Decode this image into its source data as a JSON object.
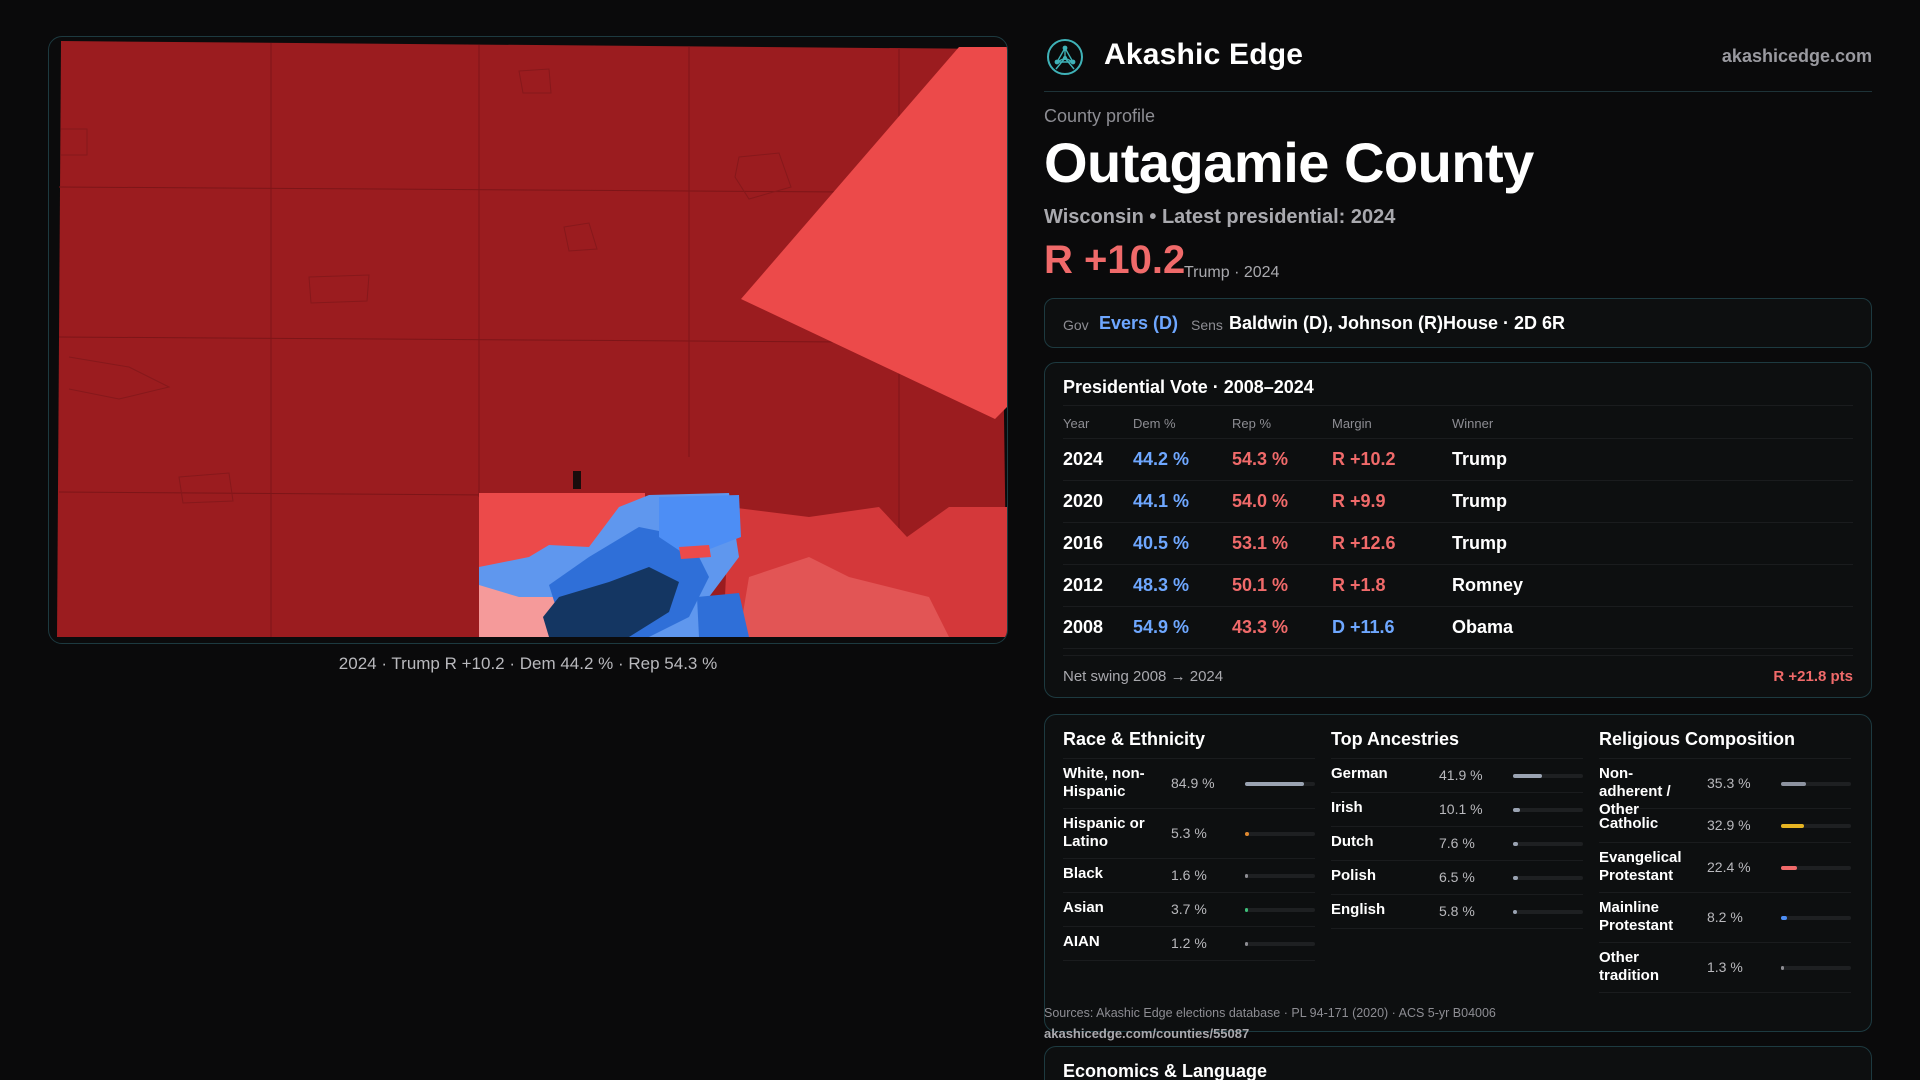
{
  "brand": {
    "name": "Akashic Edge",
    "url": "akashicedge.com",
    "logo_icon": "network-globe-icon"
  },
  "map": {
    "caption": "2024 · Trump R +10.2 · Dem 44.2 % · Rep 54.3 %"
  },
  "profile": {
    "kicker": "County profile",
    "title": "Outagamie County",
    "subtitle": "Wisconsin • Latest presidential: 2024",
    "margin": "R +10.2",
    "margin_note": "Trump · 2024"
  },
  "officials": {
    "gov_label": "Gov",
    "gov_value": "Evers (D)",
    "sens_label": "Sens",
    "sens_value": "Baldwin (D), Johnson (R)",
    "house_value": "House · 2D 6R"
  },
  "presidential": {
    "title": "Presidential Vote · 2008–2024",
    "headers": {
      "year": "Year",
      "dem": "Dem %",
      "rep": "Rep %",
      "margin": "Margin",
      "winner": "Winner"
    },
    "rows": [
      {
        "year": "2024",
        "dem": "44.2 %",
        "rep": "54.3 %",
        "margin": "R +10.2",
        "winner": "Trump"
      },
      {
        "year": "2020",
        "dem": "44.1 %",
        "rep": "54.0 %",
        "margin": "R +9.9",
        "winner": "Trump"
      },
      {
        "year": "2016",
        "dem": "40.5 %",
        "rep": "53.1 %",
        "margin": "R +12.6",
        "winner": "Trump"
      },
      {
        "year": "2012",
        "dem": "48.3 %",
        "rep": "50.1 %",
        "margin": "R +1.8",
        "winner": "Romney"
      },
      {
        "year": "2008",
        "dem": "54.9 %",
        "rep": "43.3 %",
        "margin": "D +11.6",
        "winner": "Obama"
      }
    ],
    "swing_label": "Net swing 2008 → 2024",
    "swing_value": "R +21.8 pts"
  },
  "race": {
    "title": "Race & Ethnicity",
    "rows": [
      {
        "label": "White, non-Hispanic",
        "value": "84.9 %",
        "pct": 84.9,
        "color": "#9aa3b2"
      },
      {
        "label": "Hispanic or Latino",
        "value": "5.3 %",
        "pct": 5.3,
        "color": "#e0892f"
      },
      {
        "label": "Black",
        "value": "1.6 %",
        "pct": 1.6,
        "color": "#8d8d93"
      },
      {
        "label": "Asian",
        "value": "3.7 %",
        "pct": 3.7,
        "color": "#3ec07a"
      },
      {
        "label": "AIAN",
        "value": "1.2 %",
        "pct": 1.2,
        "color": "#8d8d93"
      }
    ]
  },
  "ancestry": {
    "title": "Top Ancestries",
    "rows": [
      {
        "label": "German",
        "value": "41.9 %",
        "pct": 41.9,
        "color": "#9aa3b2"
      },
      {
        "label": "Irish",
        "value": "10.1 %",
        "pct": 10.1,
        "color": "#9aa3b2"
      },
      {
        "label": "Dutch",
        "value": "7.6 %",
        "pct": 7.6,
        "color": "#9aa3b2"
      },
      {
        "label": "Polish",
        "value": "6.5 %",
        "pct": 6.5,
        "color": "#9aa3b2"
      },
      {
        "label": "English",
        "value": "5.8 %",
        "pct": 5.8,
        "color": "#9aa3b2"
      }
    ]
  },
  "religion": {
    "title": "Religious Composition",
    "rows": [
      {
        "label": "Non-adherent / Other",
        "value": "35.3 %",
        "pct": 35.3,
        "color": "#8d93a0"
      },
      {
        "label": "Catholic",
        "value": "32.9 %",
        "pct": 32.9,
        "color": "#e6b422"
      },
      {
        "label": "Evangelical Protestant",
        "value": "22.4 %",
        "pct": 22.4,
        "color": "#f06a6a"
      },
      {
        "label": "Mainline Protestant",
        "value": "8.2 %",
        "pct": 8.2,
        "color": "#4d8ef5"
      },
      {
        "label": "Other tradition",
        "value": "1.3 %",
        "pct": 1.3,
        "color": "#8d8d93"
      }
    ]
  },
  "sources": {
    "text": "Sources: Akashic Edge elections database · PL 94-171 (2020) · ACS 5-yr B04006",
    "url": "akashicedge.com/counties/55087"
  },
  "economics": {
    "title": "Economics & Language"
  },
  "colors": {
    "rep_dark": "#9b1c1f",
    "rep_mid": "#d4383a",
    "rep_light": "#ec4a4a",
    "rep_pale": "#f59a9a",
    "dem_light": "#5f97ee",
    "dem_mid": "#2f6fd8",
    "dem_dark": "#143662"
  }
}
